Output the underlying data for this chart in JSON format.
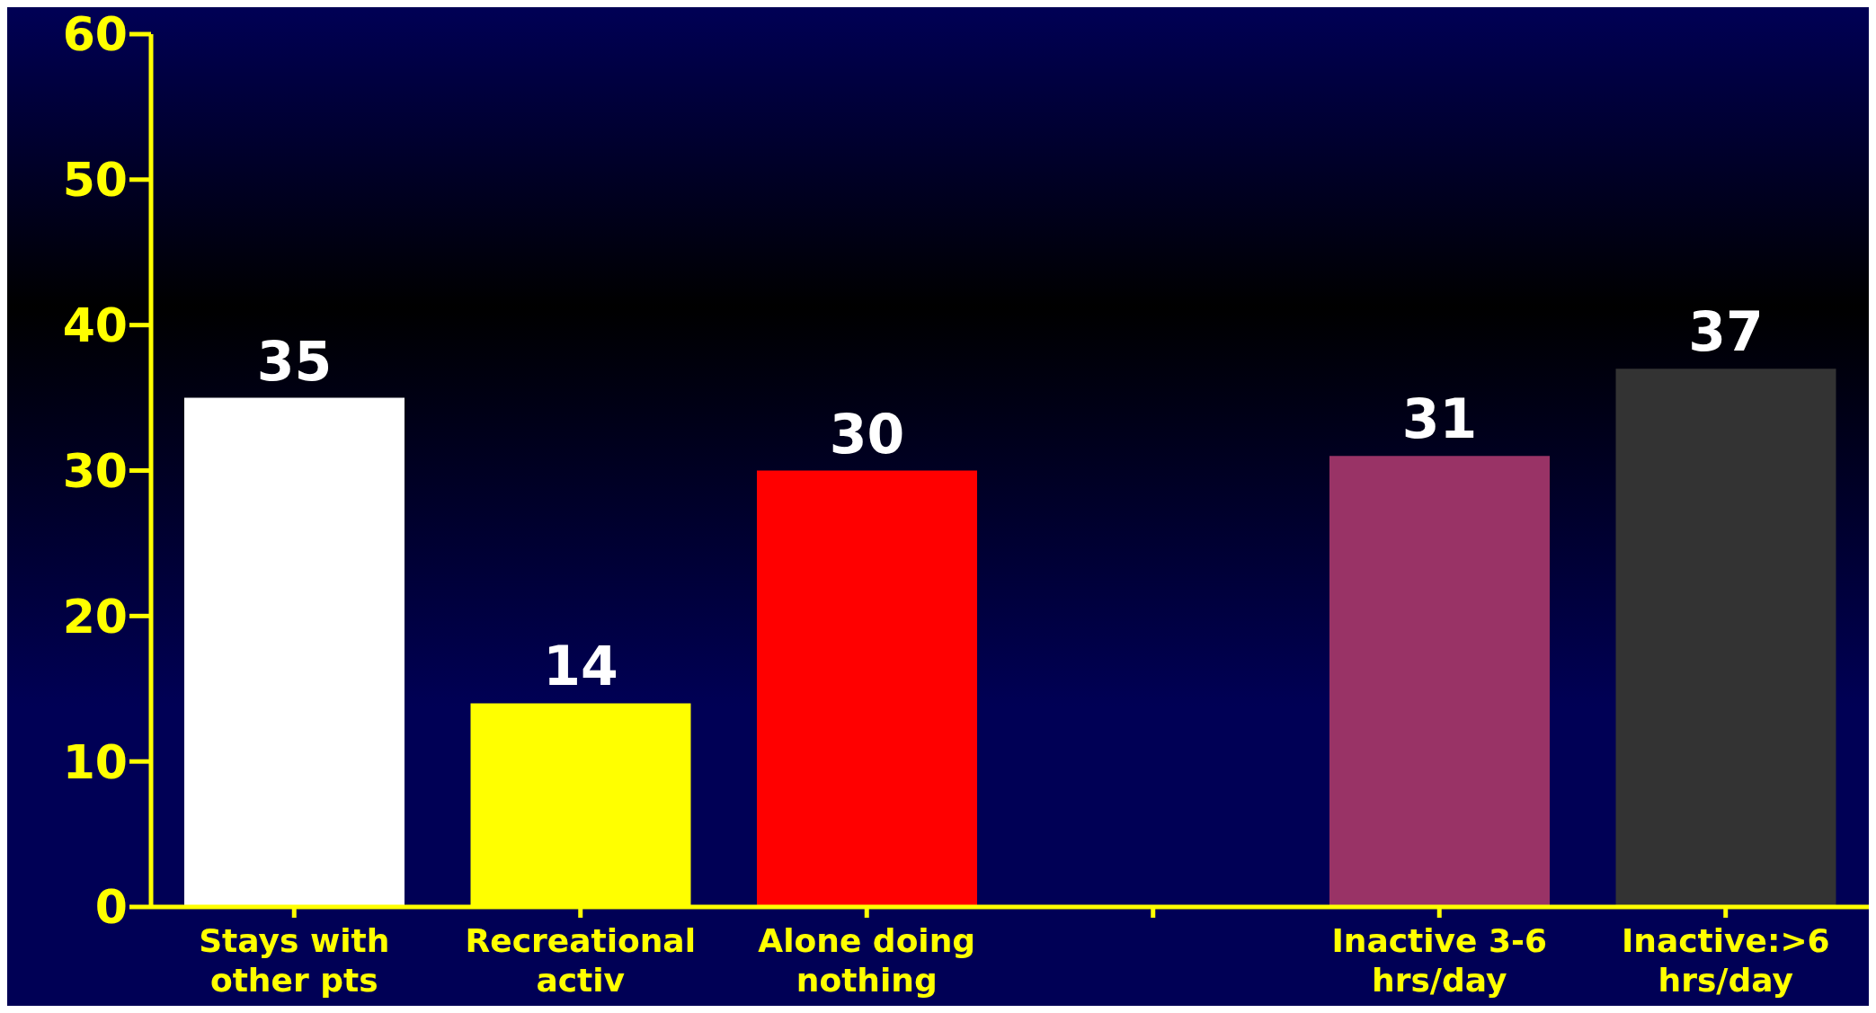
{
  "chart_data": {
    "type": "bar",
    "categories": [
      "Stays with other pts",
      "Recreational activ",
      "Alone doing nothing",
      null,
      "Inactive 3-6 hrs/day",
      "Inactive:>6 hrs/day"
    ],
    "values": [
      35,
      14,
      30,
      null,
      31,
      37
    ],
    "colors": [
      "#ffffff",
      "#ffff00",
      "#ff0000",
      null,
      "#993366",
      "#333333"
    ],
    "ylim": [
      0,
      60
    ],
    "yticks": [
      0,
      10,
      20,
      30,
      40,
      50,
      60
    ],
    "data_labels": true,
    "grid": false,
    "legend": false
  }
}
